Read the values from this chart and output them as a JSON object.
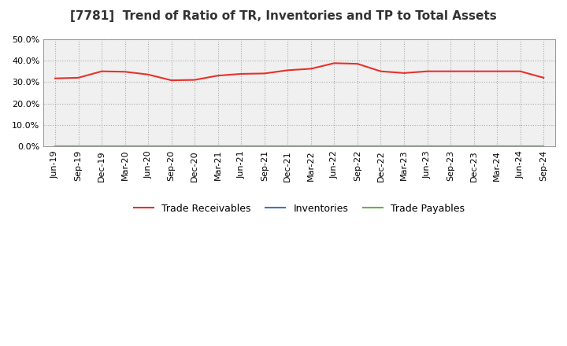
{
  "title": "[7781]  Trend of Ratio of TR, Inventories and TP to Total Assets",
  "x_labels": [
    "Jun-19",
    "Sep-19",
    "Dec-19",
    "Mar-20",
    "Jun-20",
    "Sep-20",
    "Dec-20",
    "Mar-21",
    "Jun-21",
    "Sep-21",
    "Dec-21",
    "Mar-22",
    "Jun-22",
    "Sep-22",
    "Dec-22",
    "Mar-23",
    "Jun-23",
    "Sep-23",
    "Dec-23",
    "Mar-24",
    "Jun-24",
    "Sep-24"
  ],
  "trade_receivables": [
    0.317,
    0.32,
    0.35,
    0.348,
    0.335,
    0.308,
    0.31,
    0.33,
    0.338,
    0.34,
    0.355,
    0.362,
    0.388,
    0.385,
    0.35,
    0.342,
    0.35,
    0.35,
    0.35,
    0.35,
    0.35,
    0.32
  ],
  "inventories": [
    0.0,
    0.0,
    0.0,
    0.0,
    0.0,
    0.0,
    0.0,
    0.0,
    0.0,
    0.0,
    0.0,
    0.0,
    0.0,
    0.0,
    0.0,
    0.0,
    0.0,
    0.0,
    0.0,
    0.0,
    0.0,
    0.0
  ],
  "trade_payables": [
    0.0,
    0.0,
    0.0,
    0.0,
    0.0,
    0.0,
    0.0,
    0.0,
    0.0,
    0.0,
    0.0,
    0.0,
    0.0,
    0.0,
    0.0,
    0.0,
    0.0,
    0.0,
    0.0,
    0.0,
    0.0,
    0.0
  ],
  "tr_color": "#e8312a",
  "inv_color": "#4472c4",
  "tp_color": "#70ad47",
  "ylim": [
    0.0,
    0.5
  ],
  "yticks": [
    0.0,
    0.1,
    0.2,
    0.3,
    0.4,
    0.5
  ],
  "background_color": "#ffffff",
  "plot_bg_color": "#f0f0f0",
  "grid_color": "#aaaaaa",
  "title_fontsize": 11,
  "tick_fontsize": 8,
  "legend_labels": [
    "Trade Receivables",
    "Inventories",
    "Trade Payables"
  ],
  "legend_fontsize": 9
}
